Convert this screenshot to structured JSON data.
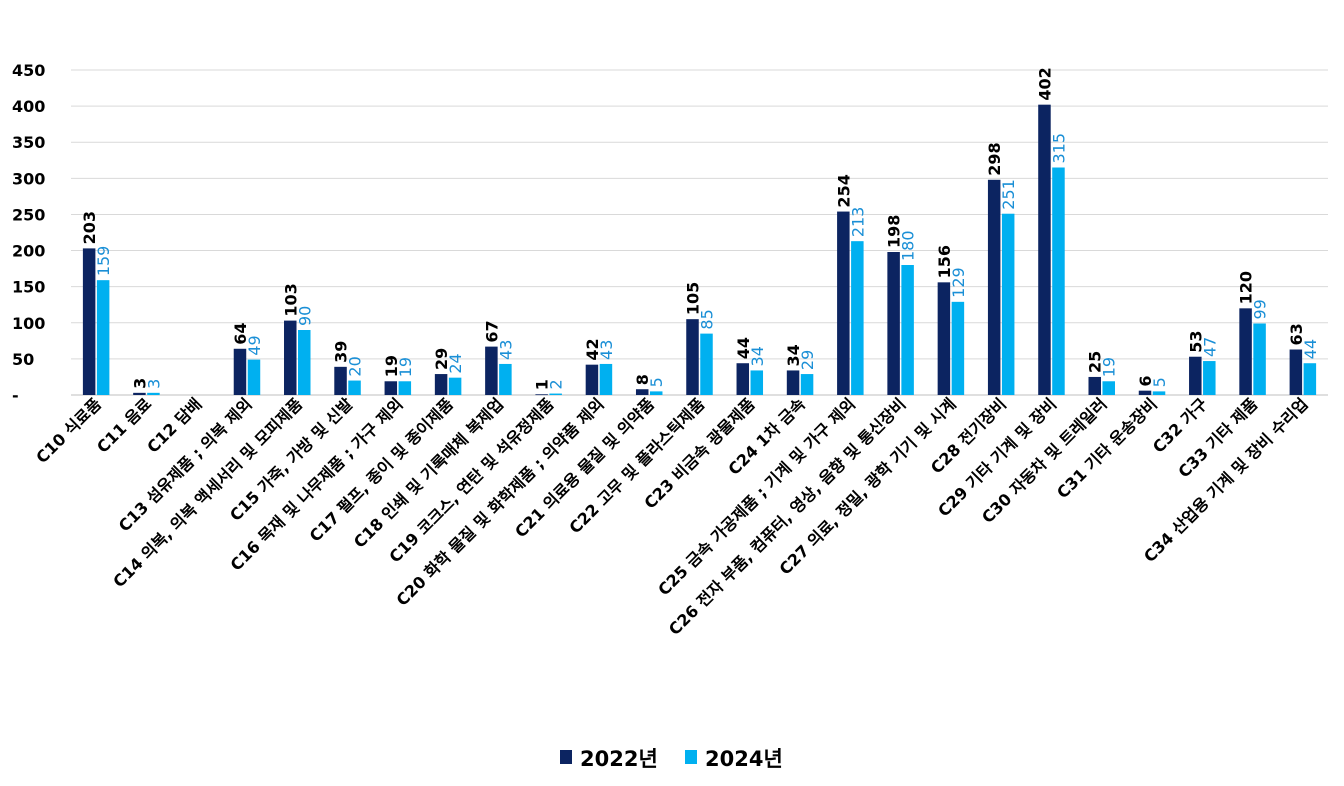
{
  "chart_data": {
    "type": "bar",
    "title": "",
    "xlabel": "",
    "ylabel": "",
    "ylim": [
      0,
      450
    ],
    "yticks": [
      0,
      50,
      100,
      150,
      200,
      250,
      300,
      350,
      400,
      450
    ],
    "ytick_labels": [
      "-",
      "50",
      "100",
      "150",
      "200",
      "250",
      "300",
      "350",
      "400",
      "450"
    ],
    "grid": true,
    "legend_position": "bottom",
    "categories": [
      "C10 식료품",
      "C11 음료",
      "C12 담배",
      "C13 섬유제품 ; 의복 제외",
      "C14 의복, 의복 액세서리 및 모피제품",
      "C15 가죽, 가방 및 신발",
      "C16 목재 및 나무제품 ; 가구 제외",
      "C17 펄프, 종이 및 종이제품",
      "C18 인쇄 및 기록매체 복제업",
      "C19 코크스, 연탄 및 석유정제품",
      "C20 화학 물질 및 화학제품 ; 의약품 제외",
      "C21 의료용 물질 및 의약품",
      "C22 고무 및 플라스틱제품",
      "C23 비금속 광물제품",
      "C24 1차 금속",
      "C25 금속 가공제품 ; 기계 및 가구 제외",
      "C26 전자 부품, 컴퓨터, 영상, 음향 및 통신장비",
      "C27 의료, 정밀, 광학 기기 및 시계",
      "C28 전기장비",
      "C29 기타 기계 및 장비",
      "C30 자동차 및 트레일러",
      "C31 기타 운송장비",
      "C32 가구",
      "C33 기타 제품",
      "C34 산업용 기계 및 장비 수리업"
    ],
    "series": [
      {
        "name": "2022년",
        "color": "#0c2461",
        "values": [
          203,
          3,
          null,
          64,
          103,
          39,
          19,
          29,
          67,
          1,
          42,
          8,
          105,
          44,
          34,
          254,
          198,
          156,
          298,
          402,
          25,
          6,
          53,
          120,
          63
        ]
      },
      {
        "name": "2024년",
        "color": "#00b0f0",
        "label_color": "#1a8fd6",
        "values": [
          159,
          3,
          null,
          49,
          90,
          20,
          19,
          24,
          43,
          2,
          43,
          5,
          85,
          34,
          29,
          213,
          180,
          129,
          251,
          315,
          19,
          5,
          47,
          99,
          44
        ]
      }
    ]
  }
}
